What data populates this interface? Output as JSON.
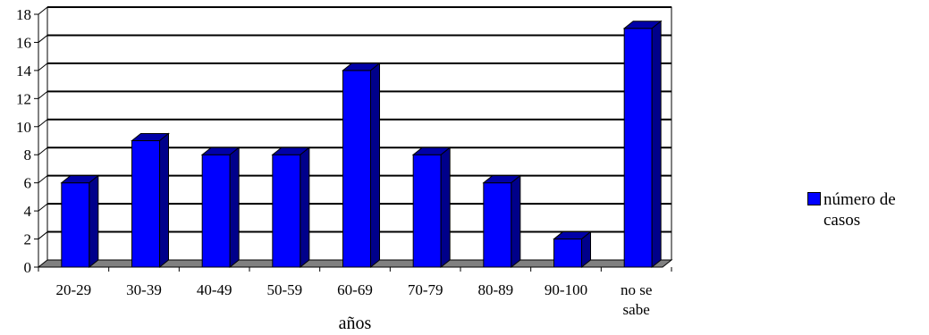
{
  "chart_data": {
    "type": "bar",
    "style": "3d-column",
    "categories": [
      "20-29",
      "30-39",
      "40-49",
      "50-59",
      "60-69",
      "70-79",
      "80-89",
      "90-100",
      "no se sabe"
    ],
    "series": [
      {
        "name": "número de casos",
        "values": [
          6,
          9,
          8,
          8,
          14,
          8,
          6,
          2,
          17
        ]
      }
    ],
    "title": "",
    "xlabel": "años",
    "ylabel": "",
    "ylim": [
      0,
      18
    ],
    "yticks": [
      0,
      2,
      4,
      6,
      8,
      10,
      12,
      14,
      16,
      18
    ],
    "grid": true,
    "legend_position": "right",
    "colors": {
      "bar_front": "#0000ff",
      "bar_top": "#0000a8",
      "bar_side": "#00008a",
      "floor": "#808080",
      "outline": "#000000"
    }
  }
}
